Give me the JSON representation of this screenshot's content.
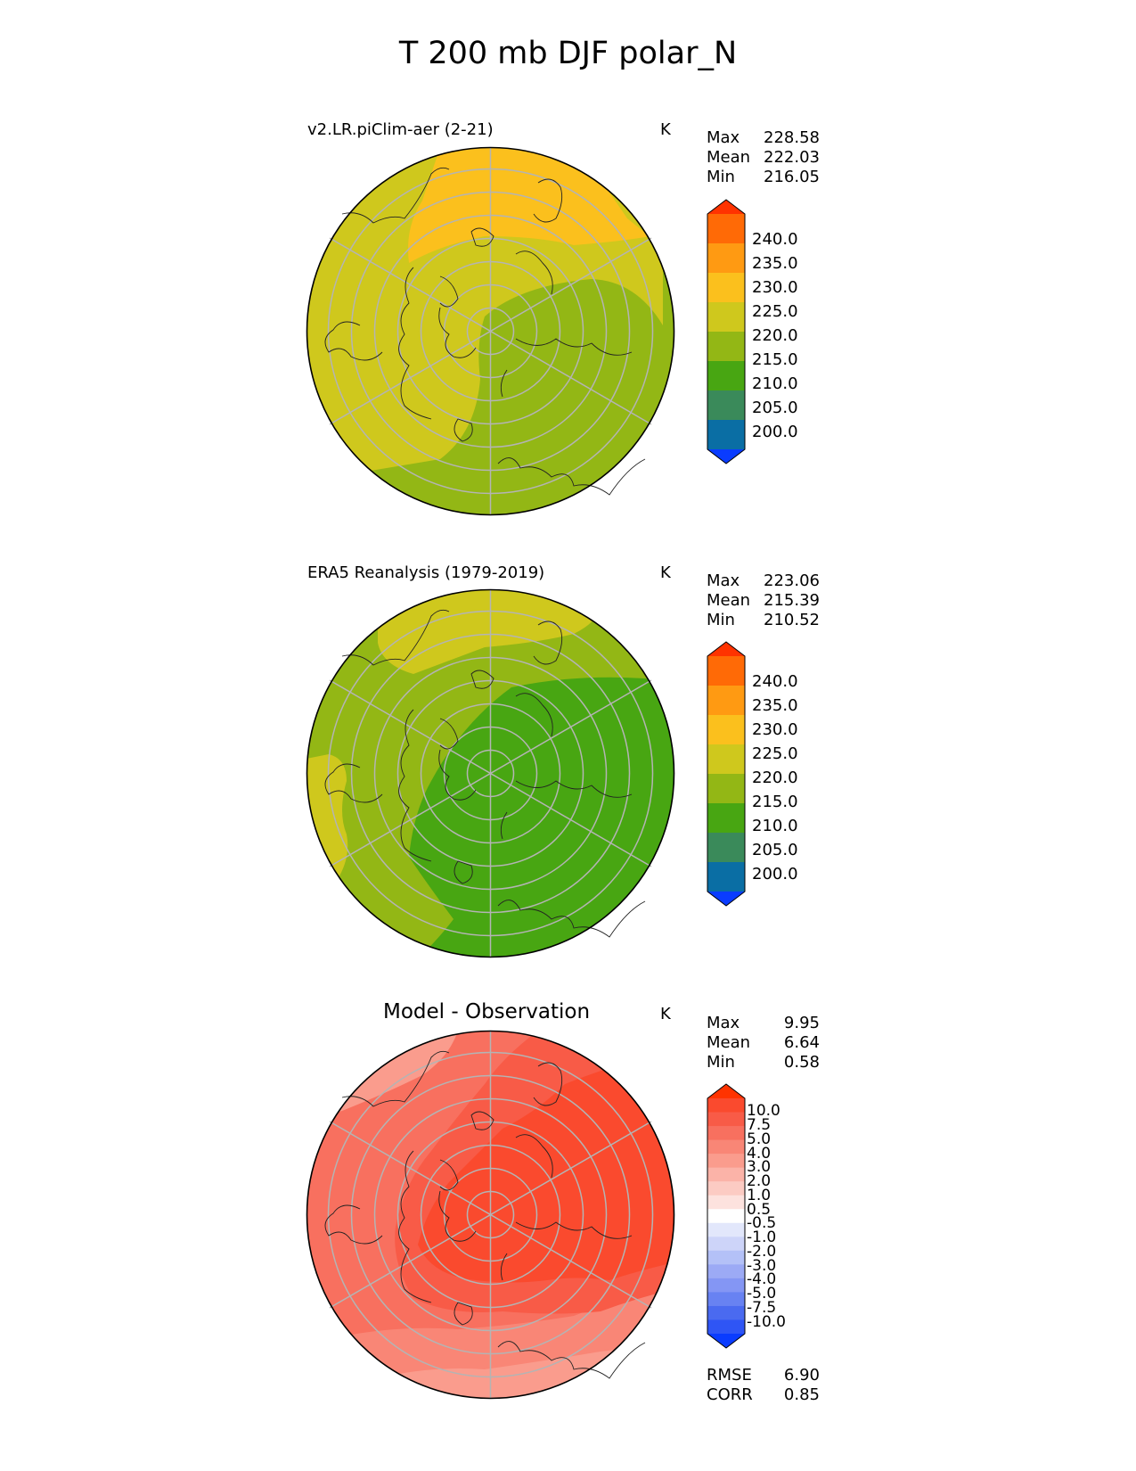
{
  "title": "T 200 mb DJF polar_N",
  "units": "K",
  "panels": [
    {
      "id": "test",
      "title": "v2.LR.piClim-aer (2-21)",
      "units": "K",
      "stats": [
        {
          "label": "Max",
          "value": "228.58"
        },
        {
          "label": "Mean",
          "value": "222.03"
        },
        {
          "label": "Min",
          "value": "216.05"
        }
      ],
      "colorbar": {
        "colors": [
          "#0a3cff",
          "#0a6ea4",
          "#3a8a5a",
          "#48a612",
          "#93b715",
          "#cfc81d",
          "#fbc01d",
          "#ff9a12",
          "#ff6a06",
          "#ff3300"
        ],
        "ticks": [
          "200.0",
          "205.0",
          "210.0",
          "215.0",
          "220.0",
          "225.0",
          "230.0",
          "235.0",
          "240.0"
        ]
      }
    },
    {
      "id": "reference",
      "title": "ERA5 Reanalysis (1979-2019)",
      "units": "K",
      "stats": [
        {
          "label": "Max",
          "value": "223.06"
        },
        {
          "label": "Mean",
          "value": "215.39"
        },
        {
          "label": "Min",
          "value": "210.52"
        }
      ],
      "colorbar": {
        "colors": [
          "#0a3cff",
          "#0a6ea4",
          "#3a8a5a",
          "#48a612",
          "#93b715",
          "#cfc81d",
          "#fbc01d",
          "#ff9a12",
          "#ff6a06",
          "#ff3300"
        ],
        "ticks": [
          "200.0",
          "205.0",
          "210.0",
          "215.0",
          "220.0",
          "225.0",
          "230.0",
          "235.0",
          "240.0"
        ]
      }
    },
    {
      "id": "diff",
      "title": "Model - Observation",
      "units": "K",
      "stats": [
        {
          "label": "Max",
          "value": "9.95"
        },
        {
          "label": "Mean",
          "value": "6.64"
        },
        {
          "label": "Min",
          "value": "0.58"
        }
      ],
      "colorbar": {
        "colors": [
          "#0a3cff",
          "#2f55f5",
          "#4a6af0",
          "#6882f2",
          "#8496f4",
          "#9caaf5",
          "#b4c1f7",
          "#cdd4f9",
          "#e2e7fb",
          "#ffffff",
          "#fde2de",
          "#fccbc3",
          "#fbb3a8",
          "#fa9c8d",
          "#f98676",
          "#f8705f",
          "#f85b47",
          "#fa4a2e",
          "#ff3300"
        ],
        "ticks": [
          "-10.0",
          "-7.5",
          "-5.0",
          "-4.0",
          "-3.0",
          "-2.0",
          "-1.0",
          "-0.5",
          "0.5",
          "1.0",
          "2.0",
          "3.0",
          "4.0",
          "5.0",
          "7.5",
          "10.0"
        ]
      },
      "metrics": [
        {
          "label": "RMSE",
          "value": "6.90"
        },
        {
          "label": "CORR",
          "value": "0.85"
        }
      ]
    }
  ]
}
